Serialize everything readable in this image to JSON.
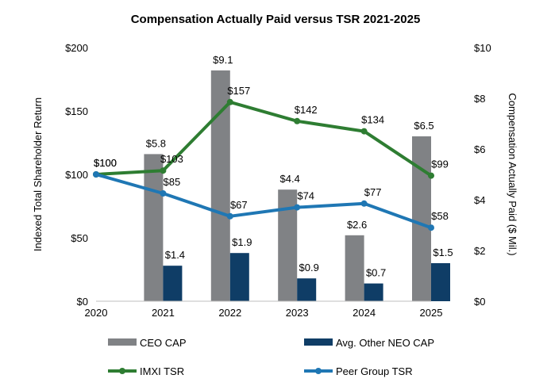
{
  "chart_data": {
    "type": "bar",
    "title": "Compensation Actually Paid versus TSR 2021-2025",
    "x": [
      "2020",
      "2021",
      "2022",
      "2023",
      "2024",
      "2025"
    ],
    "left_axis": {
      "label": "Indexed Total Shareholder Return",
      "ylim": [
        0,
        200
      ],
      "ticks": [
        "$0",
        "$50",
        "$100",
        "$150",
        "$200"
      ],
      "tick_values": [
        0,
        50,
        100,
        150,
        200
      ]
    },
    "right_axis": {
      "label": "Compensation Actually Paid ($ Mil.)",
      "ylim": [
        0,
        10
      ],
      "ticks": [
        "$0",
        "$2",
        "$4",
        "$6",
        "$8",
        "$10"
      ],
      "tick_values": [
        0,
        2,
        4,
        6,
        8,
        10
      ]
    },
    "series": [
      {
        "name": "CEO CAP",
        "kind": "bar",
        "axis": "right",
        "color": "#808285",
        "x": [
          "2021",
          "2022",
          "2023",
          "2024",
          "2025"
        ],
        "values": [
          5.8,
          9.1,
          4.4,
          2.6,
          6.5
        ],
        "labels": [
          "$5.8",
          "$9.1",
          "$4.4",
          "$2.6",
          "$6.5"
        ]
      },
      {
        "name": "Avg. Other NEO CAP",
        "kind": "bar",
        "axis": "right",
        "color": "#0f3d66",
        "x": [
          "2021",
          "2022",
          "2023",
          "2024",
          "2025"
        ],
        "values": [
          1.4,
          1.9,
          0.9,
          0.7,
          1.5
        ],
        "labels": [
          "$1.4",
          "$1.9",
          "$0.9",
          "$0.7",
          "$1.5"
        ]
      },
      {
        "name": "IMXI TSR",
        "kind": "line",
        "axis": "left",
        "color": "#2e7d32",
        "x": [
          "2020",
          "2021",
          "2022",
          "2023",
          "2024",
          "2025"
        ],
        "values": [
          100,
          103,
          157,
          142,
          134,
          99
        ],
        "labels": [
          "$100",
          "$103",
          "$157",
          "$142",
          "$134",
          "$99"
        ]
      },
      {
        "name": "Peer Group TSR",
        "kind": "line",
        "axis": "left",
        "color": "#1f77b4",
        "x": [
          "2020",
          "2021",
          "2022",
          "2023",
          "2024",
          "2025"
        ],
        "values": [
          100,
          85,
          67,
          74,
          77,
          58
        ],
        "labels": [
          "$100",
          "$85",
          "$67",
          "$74",
          "$77",
          "$58"
        ]
      }
    ],
    "grid": false,
    "legend_position": "bottom"
  }
}
